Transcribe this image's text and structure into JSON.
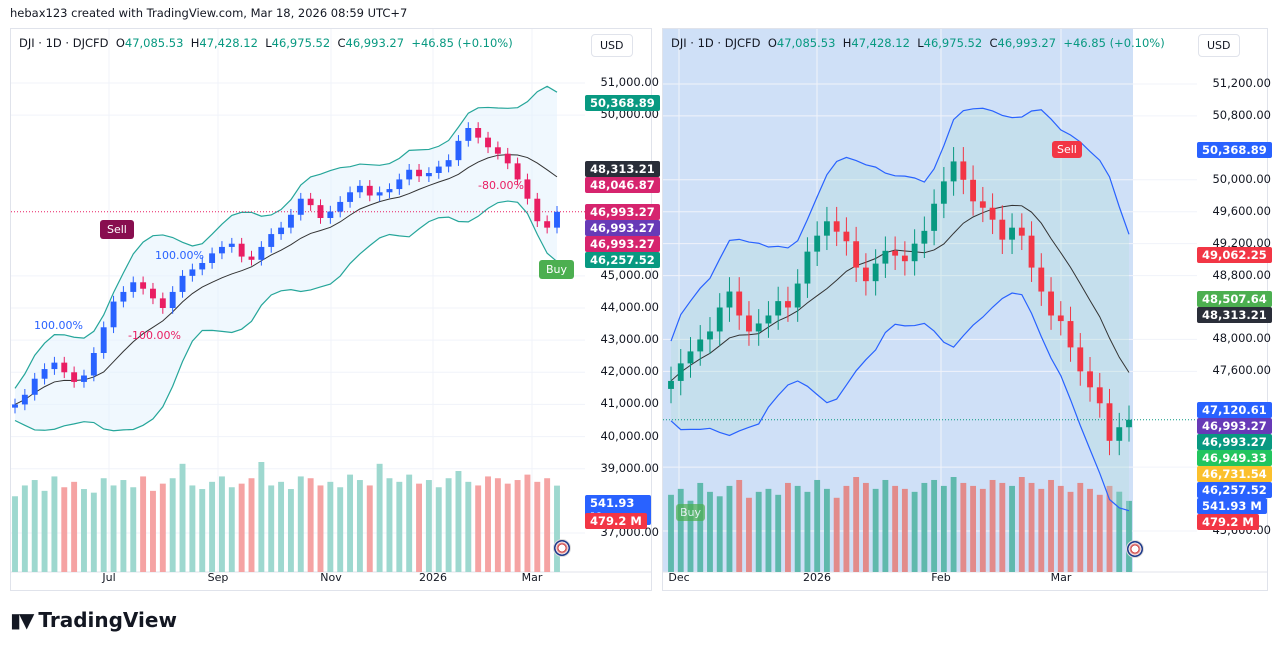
{
  "credit": "hebax123 created with TradingView.com, Mar 18, 2026 08:59 UTC+7",
  "brand": "TradingView",
  "legend": {
    "symbol": "DJI · 1D · DJCFD",
    "o_label": "O",
    "o": "47,085.53",
    "h_label": "H",
    "h": "47,428.12",
    "l_label": "L",
    "l": "46,975.52",
    "c_label": "C",
    "c": "46,993.27",
    "change": "+46.85 (+0.10%)"
  },
  "currency": "USD",
  "colors": {
    "up": "#089981",
    "down": "#f23645",
    "blue": "#2962ff",
    "teal": "#089981"
  },
  "chart_data": [
    {
      "type": "candlestick",
      "name": "left",
      "ylim": [
        36500,
        51700
      ],
      "y_ticks": [
        "51,000.00",
        "50,000.00",
        "45,000.00",
        "44,000.00",
        "43,000.00",
        "42,000.00",
        "41,000.00",
        "40,000.00",
        "39,000.00",
        "37,000.00"
      ],
      "y_tick_values": [
        51000,
        50000,
        45000,
        44000,
        43000,
        42000,
        41000,
        40000,
        39000,
        37000
      ],
      "x_ticks": [
        "Jul",
        "Sep",
        "Nov",
        "2026",
        "Mar"
      ],
      "closes": [
        41000,
        41300,
        41800,
        42100,
        42300,
        42000,
        41700,
        41900,
        42600,
        43400,
        44200,
        44500,
        44800,
        44600,
        44300,
        44000,
        44500,
        45000,
        45200,
        45400,
        45700,
        45900,
        46000,
        45600,
        45500,
        45900,
        46300,
        46500,
        46900,
        47400,
        47200,
        46800,
        47000,
        47300,
        47600,
        47800,
        47500,
        47600,
        47700,
        48000,
        48300,
        48100,
        48200,
        48400,
        48600,
        49200,
        49600,
        49300,
        49000,
        48800,
        48500,
        48000,
        47400,
        46700,
        46500,
        46993
      ],
      "volumes": [
        420,
        480,
        510,
        450,
        530,
        470,
        500,
        460,
        440,
        520,
        480,
        510,
        470,
        530,
        450,
        490,
        520,
        600,
        480,
        460,
        500,
        530,
        470,
        490,
        520,
        610,
        480,
        500,
        460,
        530,
        520,
        480,
        500,
        470,
        540,
        510,
        480,
        600,
        520,
        500,
        540,
        490,
        510,
        470,
        520,
        560,
        500,
        480,
        530,
        520,
        490,
        510,
        540,
        500,
        520,
        479
      ],
      "annotations": {
        "sell": "Sell",
        "buy": "Buy",
        "pct1": "100.00%",
        "pct2": "100.00%",
        "pct3": "-100.00%",
        "pct4": "-80.00%"
      },
      "price_tags": [
        {
          "label": "50,368.89",
          "color": "#089981",
          "value": 50368.89
        },
        {
          "label": "48,313.21",
          "color": "#2a2e39",
          "value": 48313.21
        },
        {
          "label": "48,046.87",
          "color": "#d6246e",
          "value": 48046.87
        },
        {
          "label": "46,993.27",
          "color": "#d6246e",
          "value": 46993.27
        },
        {
          "label": "46,993.27",
          "color": "#673ab7",
          "value": 46993.27
        },
        {
          "label": "46,993.27",
          "color": "#d6246e",
          "value": 46993.27
        },
        {
          "label": "46,257.52",
          "color": "#089981",
          "value": 46257.52
        },
        {
          "label": "541.93 M",
          "color": "#2962ff"
        },
        {
          "label": "479.2 M",
          "color": "#f23645"
        }
      ]
    },
    {
      "type": "candlestick",
      "name": "right",
      "ylim": [
        45400,
        51500
      ],
      "y_ticks": [
        "51,200.00",
        "50,800.00",
        "50,000.00",
        "49,600.00",
        "49,200.00",
        "48,800.00",
        "48,000.00",
        "47,600.00",
        "46,400.00",
        "45,600.00"
      ],
      "y_tick_values": [
        51200,
        50800,
        50000,
        49600,
        49200,
        48800,
        48000,
        47600,
        46400,
        45600
      ],
      "x_ticks": [
        "Dec",
        "2026",
        "Feb",
        "Mar"
      ],
      "closes": [
        47480,
        47700,
        47850,
        48000,
        48100,
        48400,
        48600,
        48300,
        48100,
        48200,
        48300,
        48480,
        48400,
        48700,
        49100,
        49300,
        49480,
        49350,
        49230,
        48900,
        48730,
        48950,
        49110,
        49050,
        48980,
        49200,
        49360,
        49700,
        49980,
        50230,
        50000,
        49730,
        49650,
        49500,
        49250,
        49400,
        49300,
        48900,
        48600,
        48300,
        48230,
        47900,
        47600,
        47400,
        47200,
        46730,
        46900,
        46993
      ],
      "volumes": [
        520,
        560,
        480,
        600,
        540,
        510,
        580,
        620,
        500,
        540,
        560,
        520,
        600,
        580,
        540,
        620,
        560,
        500,
        580,
        640,
        600,
        560,
        620,
        580,
        560,
        540,
        600,
        620,
        580,
        640,
        600,
        580,
        560,
        620,
        600,
        580,
        640,
        600,
        560,
        620,
        580,
        540,
        600,
        560,
        520,
        580,
        541,
        479
      ],
      "annotations": {
        "sell": "Sell",
        "buy": "Buy"
      },
      "price_tags": [
        {
          "label": "50,368.89",
          "color": "#2962ff",
          "value": 50368.89
        },
        {
          "label": "49,062.25",
          "color": "#f23645",
          "value": 49062.25
        },
        {
          "label": "48,507.64",
          "color": "#4caf50",
          "value": 48507.64
        },
        {
          "label": "48,313.21",
          "color": "#2a2e39",
          "value": 48313.21
        },
        {
          "label": "47,120.61",
          "color": "#2962ff",
          "value": 47120.61
        },
        {
          "label": "46,993.27",
          "color": "#673ab7",
          "value": 46993.27
        },
        {
          "label": "46,993.27",
          "color": "#089981",
          "value": 46993.27
        },
        {
          "label": "46,949.33",
          "color": "#22c55e",
          "value": 46949.33
        },
        {
          "label": "46,731.54",
          "color": "#fbc02d",
          "value": 46731.54
        },
        {
          "label": "46,257.52",
          "color": "#2962ff",
          "value": 46257.52
        },
        {
          "label": "541.93 M",
          "color": "#2962ff"
        },
        {
          "label": "479.2 M",
          "color": "#f23645"
        }
      ]
    }
  ]
}
